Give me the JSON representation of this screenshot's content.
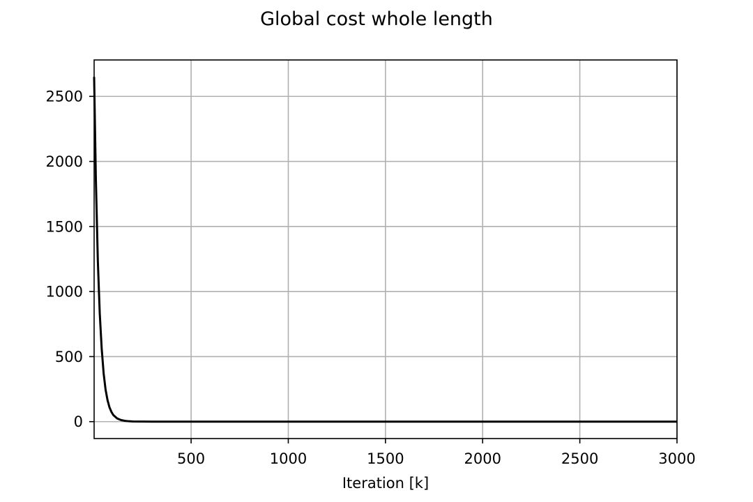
{
  "chart_data": {
    "type": "line",
    "title": "Global cost whole length",
    "xlabel": "Iteration [k]",
    "ylabel": "",
    "xlim": [
      1,
      3000
    ],
    "ylim": [
      -130,
      2780
    ],
    "grid": true,
    "xticks": [
      500,
      1000,
      1500,
      2000,
      2500,
      3000
    ],
    "yticks": [
      0,
      500,
      1000,
      1500,
      2000,
      2500
    ],
    "series": [
      {
        "color": "#000000",
        "x": [
          1,
          10,
          20,
          30,
          40,
          50,
          60,
          70,
          80,
          90,
          100,
          120,
          140,
          160,
          180,
          200,
          250,
          300,
          400,
          600,
          1000,
          1500,
          2000,
          2500,
          3000
        ],
        "y": [
          2650,
          1860,
          1240,
          830,
          560,
          370,
          245,
          165,
          110,
          75,
          50,
          24,
          12,
          6,
          3,
          1.5,
          0.5,
          0.2,
          0,
          0,
          0,
          0,
          0,
          0,
          0
        ]
      }
    ]
  }
}
